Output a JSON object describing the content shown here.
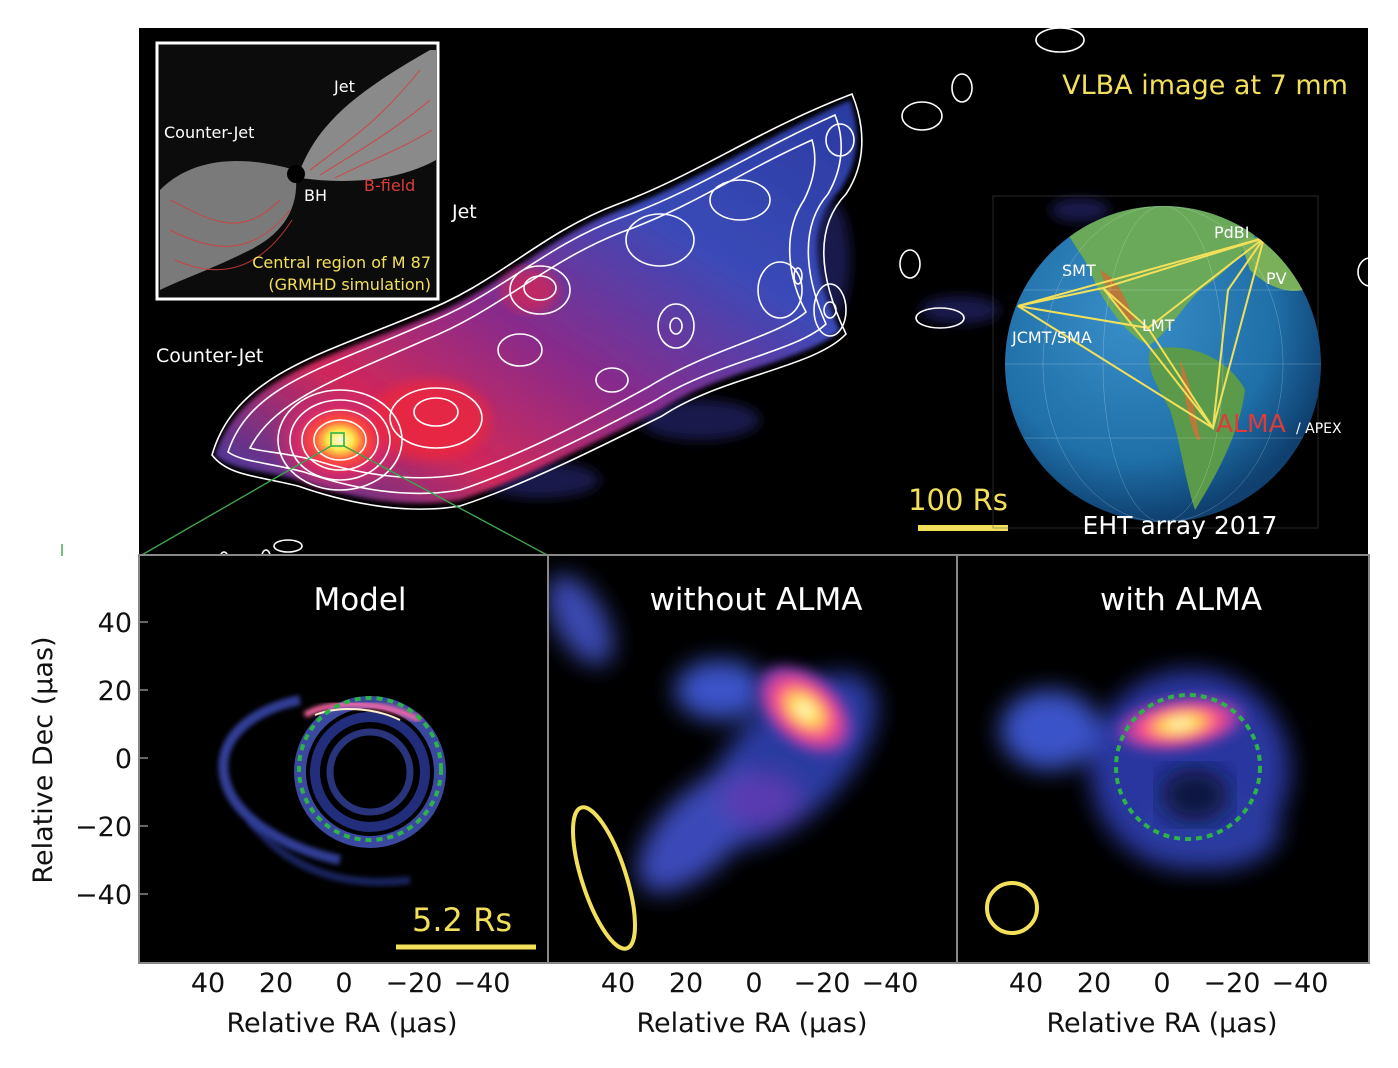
{
  "top_panel": {
    "title": "VLBA image at 7 mm",
    "jet_label": "Jet",
    "counter_jet_label": "Counter-Jet",
    "scale_bar_label": "100 Rs"
  },
  "inset": {
    "jet": "Jet",
    "counter_jet": "Counter-Jet",
    "bh": "BH",
    "bfield": "B-field",
    "caption_line1": "Central region of M 87",
    "caption_line2": "(GRMHD simulation)"
  },
  "globe": {
    "caption": "EHT array 2017",
    "stations": [
      "PdBI",
      "SMT",
      "PV",
      "LMT",
      "JCMT/SMA"
    ],
    "alma": "ALMA",
    "apex": "/ APEX"
  },
  "panels": [
    {
      "title": "Model",
      "scale_label": "5.2 Rs"
    },
    {
      "title": "without ALMA"
    },
    {
      "title": "with ALMA"
    }
  ],
  "axes": {
    "ylabel": "Relative Dec (μas)",
    "xlabel": "Relative RA (μas)",
    "y_ticks": [
      "40",
      "20",
      "0",
      "−20",
      "−40"
    ],
    "x_ticks": [
      "40",
      "20",
      "0",
      "−20",
      "−40"
    ]
  },
  "colors": {
    "accent_yellow": "#f2e05a",
    "connector_green": "#3fa34d",
    "ring_green": "#2db34a",
    "alma_red": "#e03a3a"
  }
}
